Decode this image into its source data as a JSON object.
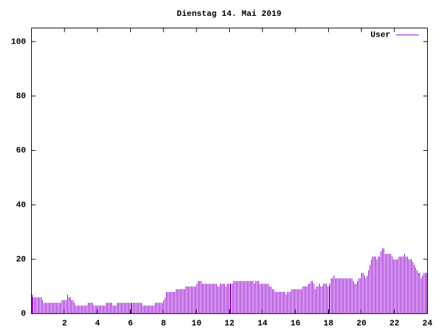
{
  "chart_data": {
    "type": "impulses",
    "title": "Dienstag 14. Mai 2019",
    "xlim": [
      0,
      24
    ],
    "xticks": [
      2,
      4,
      6,
      8,
      10,
      12,
      14,
      16,
      18,
      20,
      22,
      24
    ],
    "ylim": [
      0,
      105
    ],
    "yticks": [
      0,
      20,
      40,
      60,
      80,
      100
    ],
    "legend": "top-right",
    "series": [
      {
        "name": "User",
        "color": "#9400d3",
        "x": [
          0,
          0.083,
          0.167,
          0.25,
          0.333,
          0.417,
          0.5,
          0.583,
          0.667,
          0.75,
          0.833,
          0.917,
          1,
          1.083,
          1.167,
          1.25,
          1.333,
          1.417,
          1.5,
          1.583,
          1.667,
          1.75,
          1.833,
          1.917,
          2,
          2.083,
          2.167,
          2.25,
          2.333,
          2.417,
          2.5,
          2.583,
          2.667,
          2.75,
          2.833,
          2.917,
          3,
          3.083,
          3.167,
          3.25,
          3.333,
          3.417,
          3.5,
          3.583,
          3.667,
          3.75,
          3.833,
          3.917,
          4,
          4.083,
          4.167,
          4.25,
          4.333,
          4.417,
          4.5,
          4.583,
          4.667,
          4.75,
          4.833,
          4.917,
          5,
          5.083,
          5.167,
          5.25,
          5.333,
          5.417,
          5.5,
          5.583,
          5.667,
          5.75,
          5.833,
          5.917,
          6,
          6.083,
          6.167,
          6.25,
          6.333,
          6.417,
          6.5,
          6.583,
          6.667,
          6.75,
          6.833,
          6.917,
          7,
          7.083,
          7.167,
          7.25,
          7.333,
          7.417,
          7.5,
          7.583,
          7.667,
          7.75,
          7.833,
          7.917,
          8,
          8.083,
          8.167,
          8.25,
          8.333,
          8.417,
          8.5,
          8.583,
          8.667,
          8.75,
          8.833,
          8.917,
          9,
          9.083,
          9.167,
          9.25,
          9.333,
          9.417,
          9.5,
          9.583,
          9.667,
          9.75,
          9.833,
          9.917,
          10,
          10.083,
          10.167,
          10.25,
          10.333,
          10.417,
          10.5,
          10.583,
          10.667,
          10.75,
          10.833,
          10.917,
          11,
          11.083,
          11.167,
          11.25,
          11.333,
          11.417,
          11.5,
          11.583,
          11.667,
          11.75,
          11.833,
          11.917,
          12,
          12.083,
          12.167,
          12.25,
          12.333,
          12.417,
          12.5,
          12.583,
          12.667,
          12.75,
          12.833,
          12.917,
          13,
          13.083,
          13.167,
          13.25,
          13.333,
          13.417,
          13.5,
          13.583,
          13.667,
          13.75,
          13.833,
          13.917,
          14,
          14.083,
          14.167,
          14.25,
          14.333,
          14.417,
          14.5,
          14.583,
          14.667,
          14.75,
          14.833,
          14.917,
          15,
          15.083,
          15.167,
          15.25,
          15.333,
          15.417,
          15.5,
          15.583,
          15.667,
          15.75,
          15.833,
          15.917,
          16,
          16.083,
          16.167,
          16.25,
          16.333,
          16.417,
          16.5,
          16.583,
          16.667,
          16.75,
          16.833,
          16.917,
          17,
          17.083,
          17.167,
          17.25,
          17.333,
          17.417,
          17.5,
          17.583,
          17.667,
          17.75,
          17.833,
          17.917,
          18,
          18.083,
          18.167,
          18.25,
          18.333,
          18.417,
          18.5,
          18.583,
          18.667,
          18.75,
          18.833,
          18.917,
          19,
          19.083,
          19.167,
          19.25,
          19.333,
          19.417,
          19.5,
          19.583,
          19.667,
          19.75,
          19.833,
          19.917,
          20,
          20.083,
          20.167,
          20.25,
          20.333,
          20.417,
          20.5,
          20.583,
          20.667,
          20.75,
          20.833,
          20.917,
          21,
          21.083,
          21.167,
          21.25,
          21.333,
          21.417,
          21.5,
          21.583,
          21.667,
          21.75,
          21.833,
          21.917,
          22,
          22.083,
          22.167,
          22.25,
          22.333,
          22.417,
          22.5,
          22.583,
          22.667,
          22.75,
          22.833,
          22.917,
          23,
          23.083,
          23.167,
          23.25,
          23.333,
          23.417,
          23.5,
          23.583,
          23.667,
          23.75,
          23.833,
          23.917
        ],
        "values": [
          7,
          6,
          6,
          6,
          6,
          6,
          6,
          6,
          5,
          4,
          4,
          4,
          4,
          4,
          4,
          4,
          4,
          4,
          4,
          4,
          4,
          4,
          5,
          5,
          5,
          5,
          7,
          6,
          6,
          5,
          5,
          4,
          3,
          3,
          3,
          3,
          3,
          3,
          3,
          3,
          3,
          4,
          4,
          4,
          4,
          3,
          3,
          3,
          3,
          3,
          3,
          3,
          3,
          3,
          4,
          4,
          4,
          4,
          4,
          3,
          3,
          3,
          4,
          4,
          4,
          4,
          4,
          4,
          4,
          4,
          4,
          4,
          4,
          4,
          4,
          4,
          4,
          4,
          4,
          4,
          4,
          3,
          3,
          3,
          3,
          3,
          3,
          3,
          3,
          3,
          4,
          4,
          4,
          4,
          4,
          4,
          5,
          6,
          8,
          8,
          8,
          8,
          8,
          8,
          8,
          9,
          9,
          9,
          9,
          9,
          9,
          9,
          10,
          10,
          10,
          10,
          10,
          10,
          10,
          10,
          11,
          12,
          12,
          12,
          11,
          11,
          11,
          11,
          11,
          11,
          11,
          11,
          11,
          11,
          11,
          10,
          10,
          11,
          11,
          11,
          11,
          10,
          11,
          11,
          11,
          11,
          11,
          12,
          12,
          12,
          12,
          12,
          12,
          12,
          12,
          12,
          12,
          12,
          12,
          12,
          12,
          12,
          11,
          12,
          12,
          12,
          11,
          11,
          11,
          11,
          11,
          11,
          11,
          10,
          10,
          9,
          9,
          8,
          8,
          8,
          8,
          8,
          8,
          8,
          8,
          7,
          8,
          8,
          8,
          9,
          9,
          9,
          9,
          9,
          9,
          9,
          9,
          10,
          10,
          10,
          10,
          11,
          11,
          12,
          12,
          11,
          9,
          10,
          10,
          11,
          10,
          10,
          11,
          11,
          11,
          10,
          10,
          11,
          13,
          13,
          14,
          13,
          13,
          13,
          13,
          13,
          13,
          13,
          13,
          13,
          13,
          13,
          13,
          13,
          12,
          11,
          11,
          12,
          13,
          13,
          15,
          15,
          14,
          13,
          14,
          16,
          18,
          20,
          21,
          21,
          21,
          20,
          21,
          21,
          23,
          24,
          24,
          22,
          22,
          22,
          22,
          22,
          21,
          20,
          20,
          20,
          20,
          21,
          21,
          21,
          21,
          22,
          21,
          21,
          20,
          20,
          20,
          19,
          18,
          17,
          16,
          15,
          15,
          13,
          14,
          15,
          15,
          15
        ]
      }
    ]
  }
}
